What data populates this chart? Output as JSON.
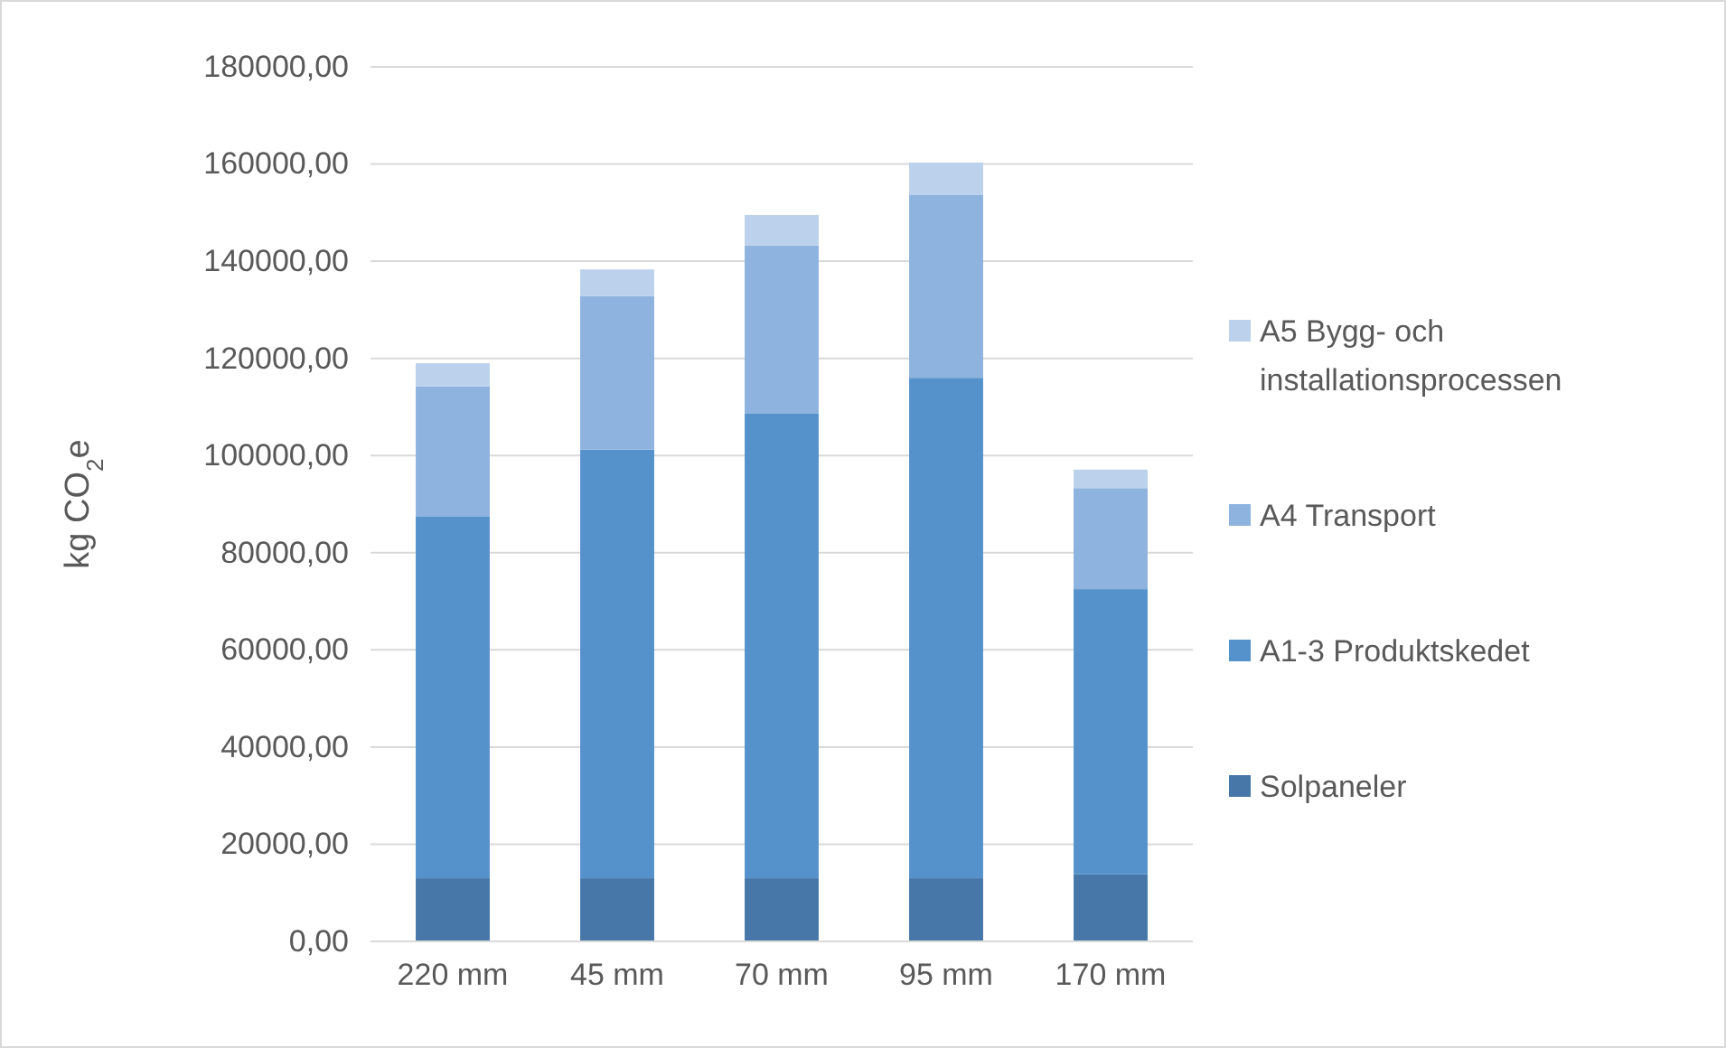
{
  "chart_data": {
    "type": "bar",
    "stacked": true,
    "ylabel": "kg CO$_{2}$e",
    "categories": [
      "220 mm",
      "45 mm",
      "70 mm",
      "95 mm",
      "170 mm"
    ],
    "series": [
      {
        "name": "Solpaneler",
        "color": "#4677a8",
        "values": [
          13000,
          13000,
          13000,
          13000,
          13800
        ]
      },
      {
        "name": "A1-3 Produktskedet",
        "color": "#5592cb",
        "values": [
          74400,
          88200,
          95600,
          103000,
          58700
        ]
      },
      {
        "name": "A4 Transport",
        "color": "#8db3de",
        "values": [
          26800,
          31600,
          34600,
          37600,
          20800
        ]
      },
      {
        "name": "A5 Bygg- och installationsprocessen",
        "color": "#bcd1ec",
        "values": [
          4800,
          5500,
          6300,
          6700,
          3800
        ]
      }
    ],
    "ylim": [
      0,
      180000
    ],
    "yticks": [
      {
        "value": 0,
        "label": "0,00"
      },
      {
        "value": 20000,
        "label": "20000,00"
      },
      {
        "value": 40000,
        "label": "40000,00"
      },
      {
        "value": 60000,
        "label": "60000,00"
      },
      {
        "value": 80000,
        "label": "80000,00"
      },
      {
        "value": 100000,
        "label": "100000,00"
      },
      {
        "value": 120000,
        "label": "120000,00"
      },
      {
        "value": 140000,
        "label": "140000,00"
      },
      {
        "value": 160000,
        "label": "160000,00"
      },
      {
        "value": 180000,
        "label": "180000,00"
      }
    ],
    "grid": "y",
    "legend": "right"
  }
}
